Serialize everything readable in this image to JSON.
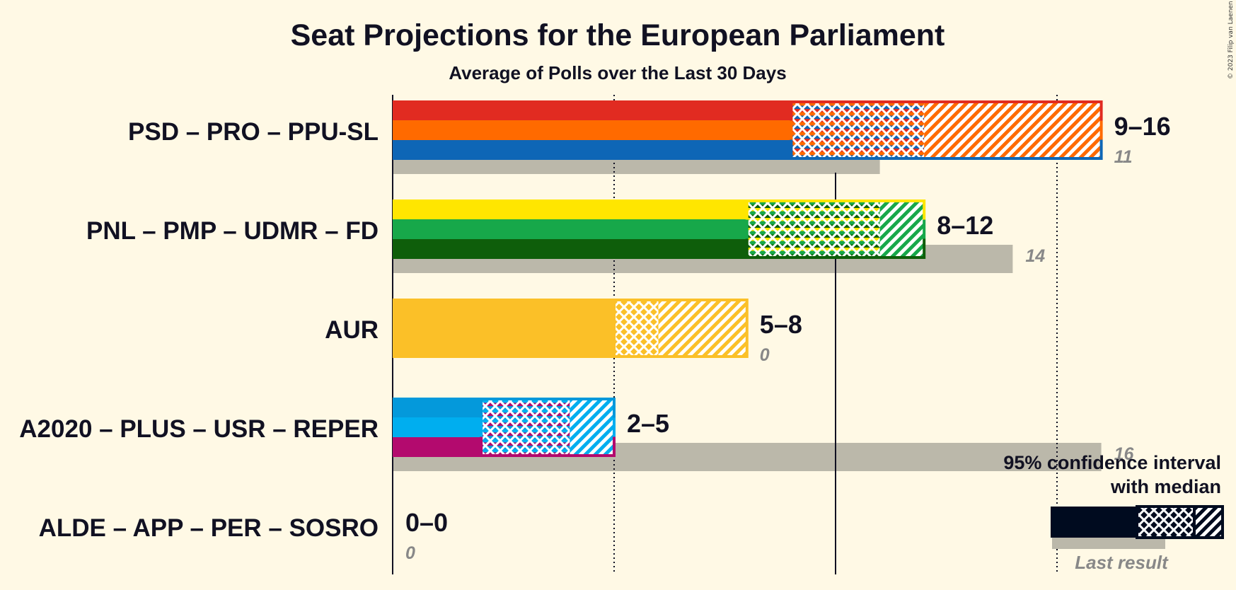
{
  "title": "Seat Projections for the European Parliament",
  "subtitle": "Average of Polls over the Last 30 Days",
  "copyright": "© 2023 Filip van Laenen",
  "legend": {
    "line1": "95% confidence interval",
    "line2": "with median",
    "last_result": "Last result"
  },
  "chart_data": {
    "type": "bar",
    "orientation": "horizontal",
    "xlim": [
      0,
      16
    ],
    "series": [
      {
        "name": "PSD – PRO – PPU-SL",
        "ci_low": 9,
        "median": 12,
        "ci_high": 16,
        "last_result": 11,
        "range_label": "9–16",
        "last_label": "11",
        "colors": [
          "#E12B21",
          "#FF6A00",
          "#0E66B6"
        ]
      },
      {
        "name": "PNL – PMP – UDMR – FD",
        "ci_low": 8,
        "median": 11,
        "ci_high": 12,
        "last_result": 14,
        "range_label": "8–12",
        "last_label": "14",
        "colors": [
          "#FFE600",
          "#17A84A",
          "#0E5E0A"
        ]
      },
      {
        "name": "AUR",
        "ci_low": 5,
        "median": 6,
        "ci_high": 8,
        "last_result": 0,
        "range_label": "5–8",
        "last_label": "0",
        "colors": [
          "#FBC028"
        ]
      },
      {
        "name": "A2020 – PLUS – USR – REPER",
        "ci_low": 2,
        "median": 4,
        "ci_high": 5,
        "last_result": 16,
        "range_label": "2–5",
        "last_label": "16",
        "colors": [
          "#0499DB",
          "#00AEEF",
          "#B30A6E"
        ]
      },
      {
        "name": "ALDE – APP – PER – SOSRO",
        "ci_low": 0,
        "median": 0,
        "ci_high": 0,
        "last_result": 0,
        "range_label": "0–0",
        "last_label": "0",
        "colors": [
          "#0061AA"
        ]
      }
    ],
    "gridlines": {
      "solid": [
        0,
        10
      ],
      "dotted": [
        5,
        15
      ]
    }
  }
}
